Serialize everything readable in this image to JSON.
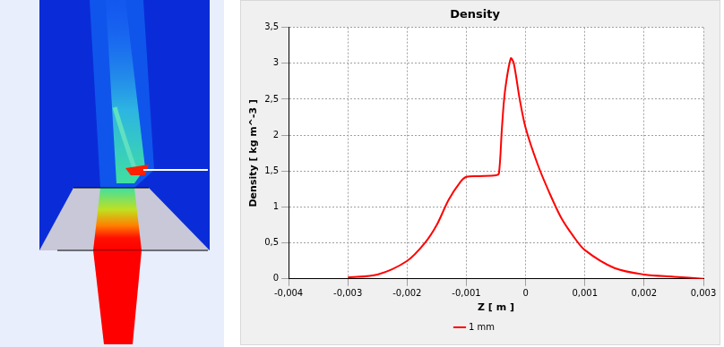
{
  "chart_data": {
    "type": "line",
    "title": "Density",
    "x_label": "Z [ m ]",
    "y_label": "Density [ kg m^-3 ]",
    "xlim": [
      -0.004,
      0.003
    ],
    "xticks": [
      {
        "value": -0.004,
        "label": "-0,004"
      },
      {
        "value": -0.003,
        "label": "-0,003"
      },
      {
        "value": -0.002,
        "label": "-0,002"
      },
      {
        "value": -0.001,
        "label": "-0,001"
      },
      0,
      {
        "value": 0.001,
        "label": "0,001"
      },
      {
        "value": 0.002,
        "label": "0,002"
      },
      {
        "value": 0.003,
        "label": "0,003"
      }
    ],
    "ylim": [
      0,
      3.5
    ],
    "yticks": [
      0,
      {
        "value": 0.5,
        "label": "0,5"
      },
      1,
      {
        "value": 1.5,
        "label": "1,5"
      },
      2,
      {
        "value": 2.5,
        "label": "2,5"
      },
      3,
      {
        "value": 3.5,
        "label": "3,5"
      }
    ],
    "grid": true,
    "legend": "bottom",
    "series": [
      {
        "name": "1 mm",
        "color": "#ff0000",
        "x": [
          -0.003,
          -0.0025,
          -0.002,
          -0.0017,
          -0.0015,
          -0.0013,
          -0.0011,
          -0.001,
          -0.0008,
          -0.0005,
          -0.00045,
          -0.0004,
          -0.00035,
          -0.00025,
          -0.0002,
          -0.0001,
          0,
          0.0002,
          0.0004,
          0.0006,
          0.0008,
          0.001,
          0.0015,
          0.002,
          0.0025,
          0.003
        ],
        "values": [
          0.02,
          0.06,
          0.25,
          0.5,
          0.75,
          1.1,
          1.35,
          1.42,
          1.43,
          1.44,
          1.47,
          2.1,
          2.6,
          3.07,
          3.0,
          2.5,
          2.1,
          1.6,
          1.2,
          0.85,
          0.6,
          0.4,
          0.15,
          0.06,
          0.03,
          0.0
        ]
      }
    ]
  }
}
